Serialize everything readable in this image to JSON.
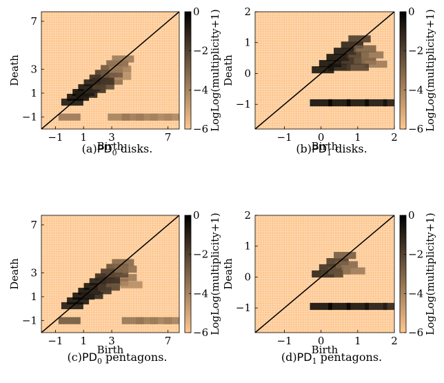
{
  "colors": {
    "background": "#ffffff",
    "plot_background": "#fdc78f",
    "grid": "#ffffff",
    "colormap_low": "#fdc78f",
    "colormap_high": "#000000",
    "diagonal": "#000000"
  },
  "chart_data": [
    {
      "id": "pd0-disks",
      "type": "heatmap",
      "caption": {
        "pre": "(a)",
        "sym": "PD",
        "sub": "0",
        "post": " disks."
      },
      "xlabel": "Birth",
      "ylabel": "Death",
      "xlim": [
        -2,
        7.8
      ],
      "ylim": [
        -2,
        7.8
      ],
      "xticks": [
        -1,
        1,
        3,
        7
      ],
      "yticks": [
        -1,
        1,
        3,
        7
      ],
      "diagonal": true,
      "colorbar": {
        "label": "LogLog(multiplicity+1)",
        "range": [
          -6,
          0
        ],
        "ticks": [
          0,
          -2,
          -4,
          -6
        ]
      },
      "points": [
        {
          "x": 0.2,
          "y": 0.25,
          "z": -0.4
        },
        {
          "x": 0.6,
          "y": 0.65,
          "z": -0.2
        },
        {
          "x": 1.0,
          "y": 1.05,
          "z": -0.1
        },
        {
          "x": 1.4,
          "y": 1.45,
          "z": -0.3
        },
        {
          "x": 1.8,
          "y": 1.85,
          "z": -0.6
        },
        {
          "x": 2.2,
          "y": 2.25,
          "z": -1.0
        },
        {
          "x": 2.6,
          "y": 2.65,
          "z": -1.6
        },
        {
          "x": 3.0,
          "y": 3.05,
          "z": -2.4
        },
        {
          "x": 3.4,
          "y": 3.45,
          "z": -3.0
        },
        {
          "x": 3.8,
          "y": 3.85,
          "z": -3.6
        },
        {
          "x": 1.2,
          "y": 0.9,
          "z": -0.8
        },
        {
          "x": 1.8,
          "y": 1.3,
          "z": -1.2
        },
        {
          "x": 2.4,
          "y": 1.6,
          "z": -2.0
        },
        {
          "x": 3.0,
          "y": 2.0,
          "z": -3.2
        },
        {
          "x": 3.6,
          "y": 2.4,
          "z": -4.2
        },
        {
          "x": 2.4,
          "y": 2.0,
          "z": -1.4
        },
        {
          "x": 3.0,
          "y": 2.6,
          "z": -2.6
        },
        {
          "x": 3.6,
          "y": 3.0,
          "z": -3.8
        },
        {
          "x": 0.0,
          "y": -1.0,
          "z": -3.5
        },
        {
          "x": 3.5,
          "y": -1.0,
          "z": -3.8
        },
        {
          "x": 4.5,
          "y": -1.0,
          "z": -3.6
        },
        {
          "x": 5.5,
          "y": -1.0,
          "z": -3.7
        },
        {
          "x": 6.5,
          "y": -1.0,
          "z": -3.9
        },
        {
          "x": 7.5,
          "y": -1.0,
          "z": -4.0
        }
      ]
    },
    {
      "id": "pd1-disks",
      "type": "heatmap",
      "caption": {
        "pre": "(b)",
        "sym": "PD",
        "sub": "1",
        "post": " disks."
      },
      "xlabel": "Birth",
      "ylabel": "Death",
      "xlim": [
        -1.8,
        2
      ],
      "ylim": [
        -1.8,
        2
      ],
      "xticks": [
        -1,
        0,
        1,
        2
      ],
      "yticks": [
        -1,
        0,
        1,
        2
      ],
      "diagonal": true,
      "colorbar": {
        "label": "LogLog(multiplicity+1)",
        "range": [
          -6,
          0
        ],
        "ticks": [
          0,
          -2,
          -4,
          -6
        ]
      },
      "points": [
        {
          "x": 0.05,
          "y": 0.12,
          "z": -0.3
        },
        {
          "x": 0.25,
          "y": 0.32,
          "z": -0.2
        },
        {
          "x": 0.45,
          "y": 0.52,
          "z": -0.2
        },
        {
          "x": 0.65,
          "y": 0.72,
          "z": -0.4
        },
        {
          "x": 0.85,
          "y": 0.92,
          "z": -0.8
        },
        {
          "x": 1.05,
          "y": 1.12,
          "z": -1.6
        },
        {
          "x": 0.5,
          "y": 0.2,
          "z": -0.6
        },
        {
          "x": 0.8,
          "y": 0.4,
          "z": -1.0
        },
        {
          "x": 1.0,
          "y": 0.6,
          "z": -1.6
        },
        {
          "x": 1.2,
          "y": 0.4,
          "z": -2.6
        },
        {
          "x": 1.4,
          "y": 0.6,
          "z": -3.4
        },
        {
          "x": 1.5,
          "y": 0.3,
          "z": -3.6
        },
        {
          "x": 1.0,
          "y": 0.2,
          "z": -1.8
        },
        {
          "x": 1.2,
          "y": 0.8,
          "z": -2.8
        },
        {
          "x": 0.0,
          "y": -0.95,
          "z": -0.1
        },
        {
          "x": 0.5,
          "y": -0.95,
          "z": -0.1
        },
        {
          "x": 1.0,
          "y": -0.95,
          "z": -0.2
        },
        {
          "x": 1.5,
          "y": -0.95,
          "z": -0.3
        },
        {
          "x": 2.0,
          "y": -0.95,
          "z": -0.5
        }
      ]
    },
    {
      "id": "pd0-pentagons",
      "type": "heatmap",
      "caption": {
        "pre": "(c)",
        "sym": "PD",
        "sub": "0",
        "post": " pentagons."
      },
      "xlabel": "Birth",
      "ylabel": "Death",
      "xlim": [
        -2,
        7.8
      ],
      "ylim": [
        -2,
        7.8
      ],
      "xticks": [
        -1,
        1,
        3,
        7
      ],
      "yticks": [
        -1,
        1,
        3,
        7
      ],
      "diagonal": true,
      "colorbar": {
        "label": "LogLog(multiplicity+1)",
        "range": [
          -6,
          0
        ],
        "ticks": [
          0,
          -2,
          -4,
          -6
        ]
      },
      "points": [
        {
          "x": 0.2,
          "y": 0.25,
          "z": -0.5
        },
        {
          "x": 0.6,
          "y": 0.65,
          "z": -0.3
        },
        {
          "x": 1.0,
          "y": 1.05,
          "z": -0.2
        },
        {
          "x": 1.4,
          "y": 1.45,
          "z": -0.2
        },
        {
          "x": 1.8,
          "y": 1.85,
          "z": -0.3
        },
        {
          "x": 2.2,
          "y": 2.25,
          "z": -0.6
        },
        {
          "x": 2.6,
          "y": 2.65,
          "z": -1.0
        },
        {
          "x": 3.0,
          "y": 3.05,
          "z": -1.6
        },
        {
          "x": 3.4,
          "y": 3.45,
          "z": -2.2
        },
        {
          "x": 3.8,
          "y": 3.85,
          "z": -3.0
        },
        {
          "x": 1.6,
          "y": 1.1,
          "z": -0.9
        },
        {
          "x": 2.2,
          "y": 1.5,
          "z": -1.2
        },
        {
          "x": 2.8,
          "y": 1.8,
          "z": -1.8
        },
        {
          "x": 3.4,
          "y": 2.2,
          "z": -2.6
        },
        {
          "x": 4.0,
          "y": 2.6,
          "z": -3.6
        },
        {
          "x": 2.8,
          "y": 2.4,
          "z": -1.4
        },
        {
          "x": 3.4,
          "y": 2.9,
          "z": -2.2
        },
        {
          "x": 4.0,
          "y": 3.3,
          "z": -3.2
        },
        {
          "x": 4.4,
          "y": 2.0,
          "z": -4.2
        },
        {
          "x": 0.0,
          "y": -1.0,
          "z": -2.5
        },
        {
          "x": 4.5,
          "y": -1.0,
          "z": -3.4
        },
        {
          "x": 5.5,
          "y": -1.0,
          "z": -3.5
        },
        {
          "x": 6.5,
          "y": -1.0,
          "z": -3.7
        },
        {
          "x": 7.5,
          "y": -1.0,
          "z": -3.8
        }
      ]
    },
    {
      "id": "pd1-pentagons",
      "type": "heatmap",
      "caption": {
        "pre": "(d)",
        "sym": "PD",
        "sub": "1",
        "post": " pentagons."
      },
      "xlabel": "Birth",
      "ylabel": "Death",
      "xlim": [
        -1.8,
        2
      ],
      "ylim": [
        -1.8,
        2
      ],
      "xticks": [
        -1,
        0,
        1,
        2
      ],
      "yticks": [
        -1,
        0,
        1,
        2
      ],
      "diagonal": true,
      "colorbar": {
        "label": "LogLog(multiplicity+1)",
        "range": [
          -6,
          0
        ],
        "ticks": [
          0,
          -2,
          -4,
          -6
        ]
      },
      "points": [
        {
          "x": 0.05,
          "y": 0.1,
          "z": -0.8
        },
        {
          "x": 0.25,
          "y": 0.3,
          "z": -1.2
        },
        {
          "x": 0.45,
          "y": 0.5,
          "z": -1.6
        },
        {
          "x": 0.65,
          "y": 0.7,
          "z": -2.6
        },
        {
          "x": 0.3,
          "y": 0.1,
          "z": -1.8
        },
        {
          "x": 0.5,
          "y": 0.2,
          "z": -2.4
        },
        {
          "x": 0.7,
          "y": 0.4,
          "z": -3.0
        },
        {
          "x": 0.9,
          "y": 0.2,
          "z": -3.6
        },
        {
          "x": 0.0,
          "y": -0.95,
          "z": -0.1
        },
        {
          "x": 0.5,
          "y": -0.95,
          "z": -0.1
        },
        {
          "x": 1.0,
          "y": -0.95,
          "z": -0.2
        },
        {
          "x": 1.5,
          "y": -0.95,
          "z": -0.5
        },
        {
          "x": 2.0,
          "y": -0.95,
          "z": -0.8
        }
      ]
    }
  ]
}
